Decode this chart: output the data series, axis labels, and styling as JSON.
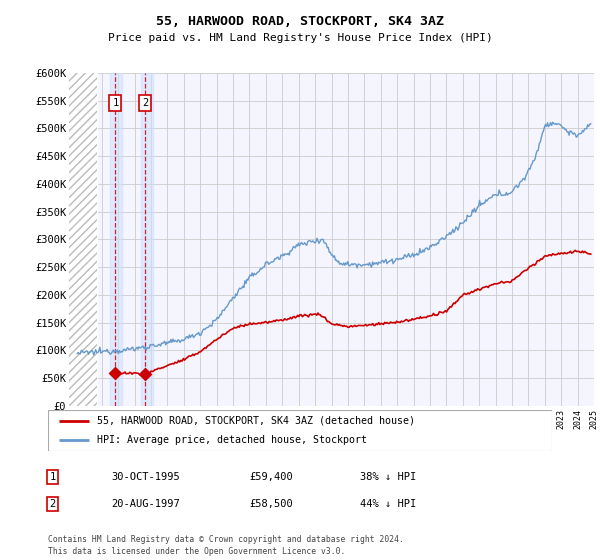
{
  "title": "55, HARWOOD ROAD, STOCKPORT, SK4 3AZ",
  "subtitle": "Price paid vs. HM Land Registry's House Price Index (HPI)",
  "ylabel_ticks": [
    "£0",
    "£50K",
    "£100K",
    "£150K",
    "£200K",
    "£250K",
    "£300K",
    "£350K",
    "£400K",
    "£450K",
    "£500K",
    "£550K",
    "£600K"
  ],
  "ytick_values": [
    0,
    50000,
    100000,
    150000,
    200000,
    250000,
    300000,
    350000,
    400000,
    450000,
    500000,
    550000,
    600000
  ],
  "xmin": 1993,
  "xmax": 2025,
  "ymin": 0,
  "ymax": 600000,
  "sale1": {
    "date": 1995.83,
    "price": 59400,
    "label": "1",
    "info": "30-OCT-1995",
    "amount": "£59,400",
    "pct": "38% ↓ HPI"
  },
  "sale2": {
    "date": 1997.63,
    "price": 58500,
    "label": "2",
    "info": "20-AUG-1997",
    "amount": "£58,500",
    "pct": "44% ↓ HPI"
  },
  "hpi_color": "#6699cc",
  "price_color": "#cc0000",
  "sale_marker_color": "#cc0000",
  "grid_color": "#cccccc",
  "legend_line1": "55, HARWOOD ROAD, STOCKPORT, SK4 3AZ (detached house)",
  "legend_line2": "HPI: Average price, detached house, Stockport",
  "footer": "Contains HM Land Registry data © Crown copyright and database right 2024.\nThis data is licensed under the Open Government Licence v3.0.",
  "background_color": "#ffffff",
  "plot_bg_color": "#f5f5ff",
  "hatch_end": 1994.7,
  "sale1_band_start": 1995.5,
  "sale1_band_end": 1996.2,
  "sale2_band_start": 1997.4,
  "sale2_band_end": 1998.1
}
